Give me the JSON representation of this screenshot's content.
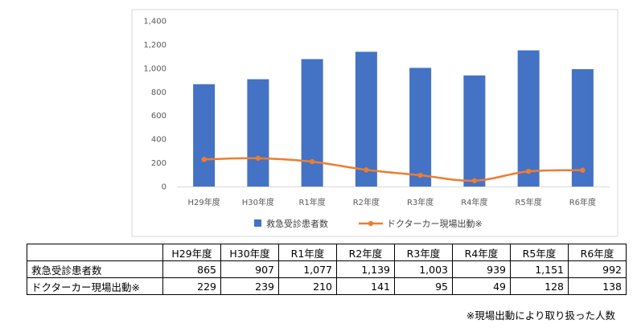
{
  "chart_data": {
    "type": "bar",
    "categories": [
      "H29年度",
      "H30年度",
      "R1年度",
      "R2年度",
      "R3年度",
      "R4年度",
      "R5年度",
      "R6年度"
    ],
    "series": [
      {
        "name": "救急受診患者数",
        "type": "bar",
        "color": "#4472C4",
        "values": [
          865,
          907,
          1077,
          1139,
          1003,
          939,
          1151,
          992
        ]
      },
      {
        "name": "ドクターカー現場出動※",
        "type": "line",
        "color": "#ED7D31",
        "values": [
          229,
          239,
          210,
          141,
          95,
          49,
          128,
          138
        ]
      }
    ],
    "yticks": [
      "0",
      "200",
      "400",
      "600",
      "800",
      "1,000",
      "1,200",
      "1,400"
    ],
    "ylim": [
      0,
      1400
    ],
    "grid": false,
    "legend": "bottom"
  },
  "table": {
    "headers": [
      "H29年度",
      "H30年度",
      "R1年度",
      "R2年度",
      "R3年度",
      "R4年度",
      "R5年度",
      "R6年度"
    ],
    "rows": [
      {
        "label": "救急受診患者数",
        "values": [
          "865",
          "907",
          "1,077",
          "1,139",
          "1,003",
          "939",
          "1,151",
          "992"
        ]
      },
      {
        "label": "ドクターカー現場出動※",
        "values": [
          "229",
          "239",
          "210",
          "141",
          "95",
          "49",
          "128",
          "138"
        ]
      }
    ]
  },
  "footnote": "※現場出動により取り扱った人数"
}
